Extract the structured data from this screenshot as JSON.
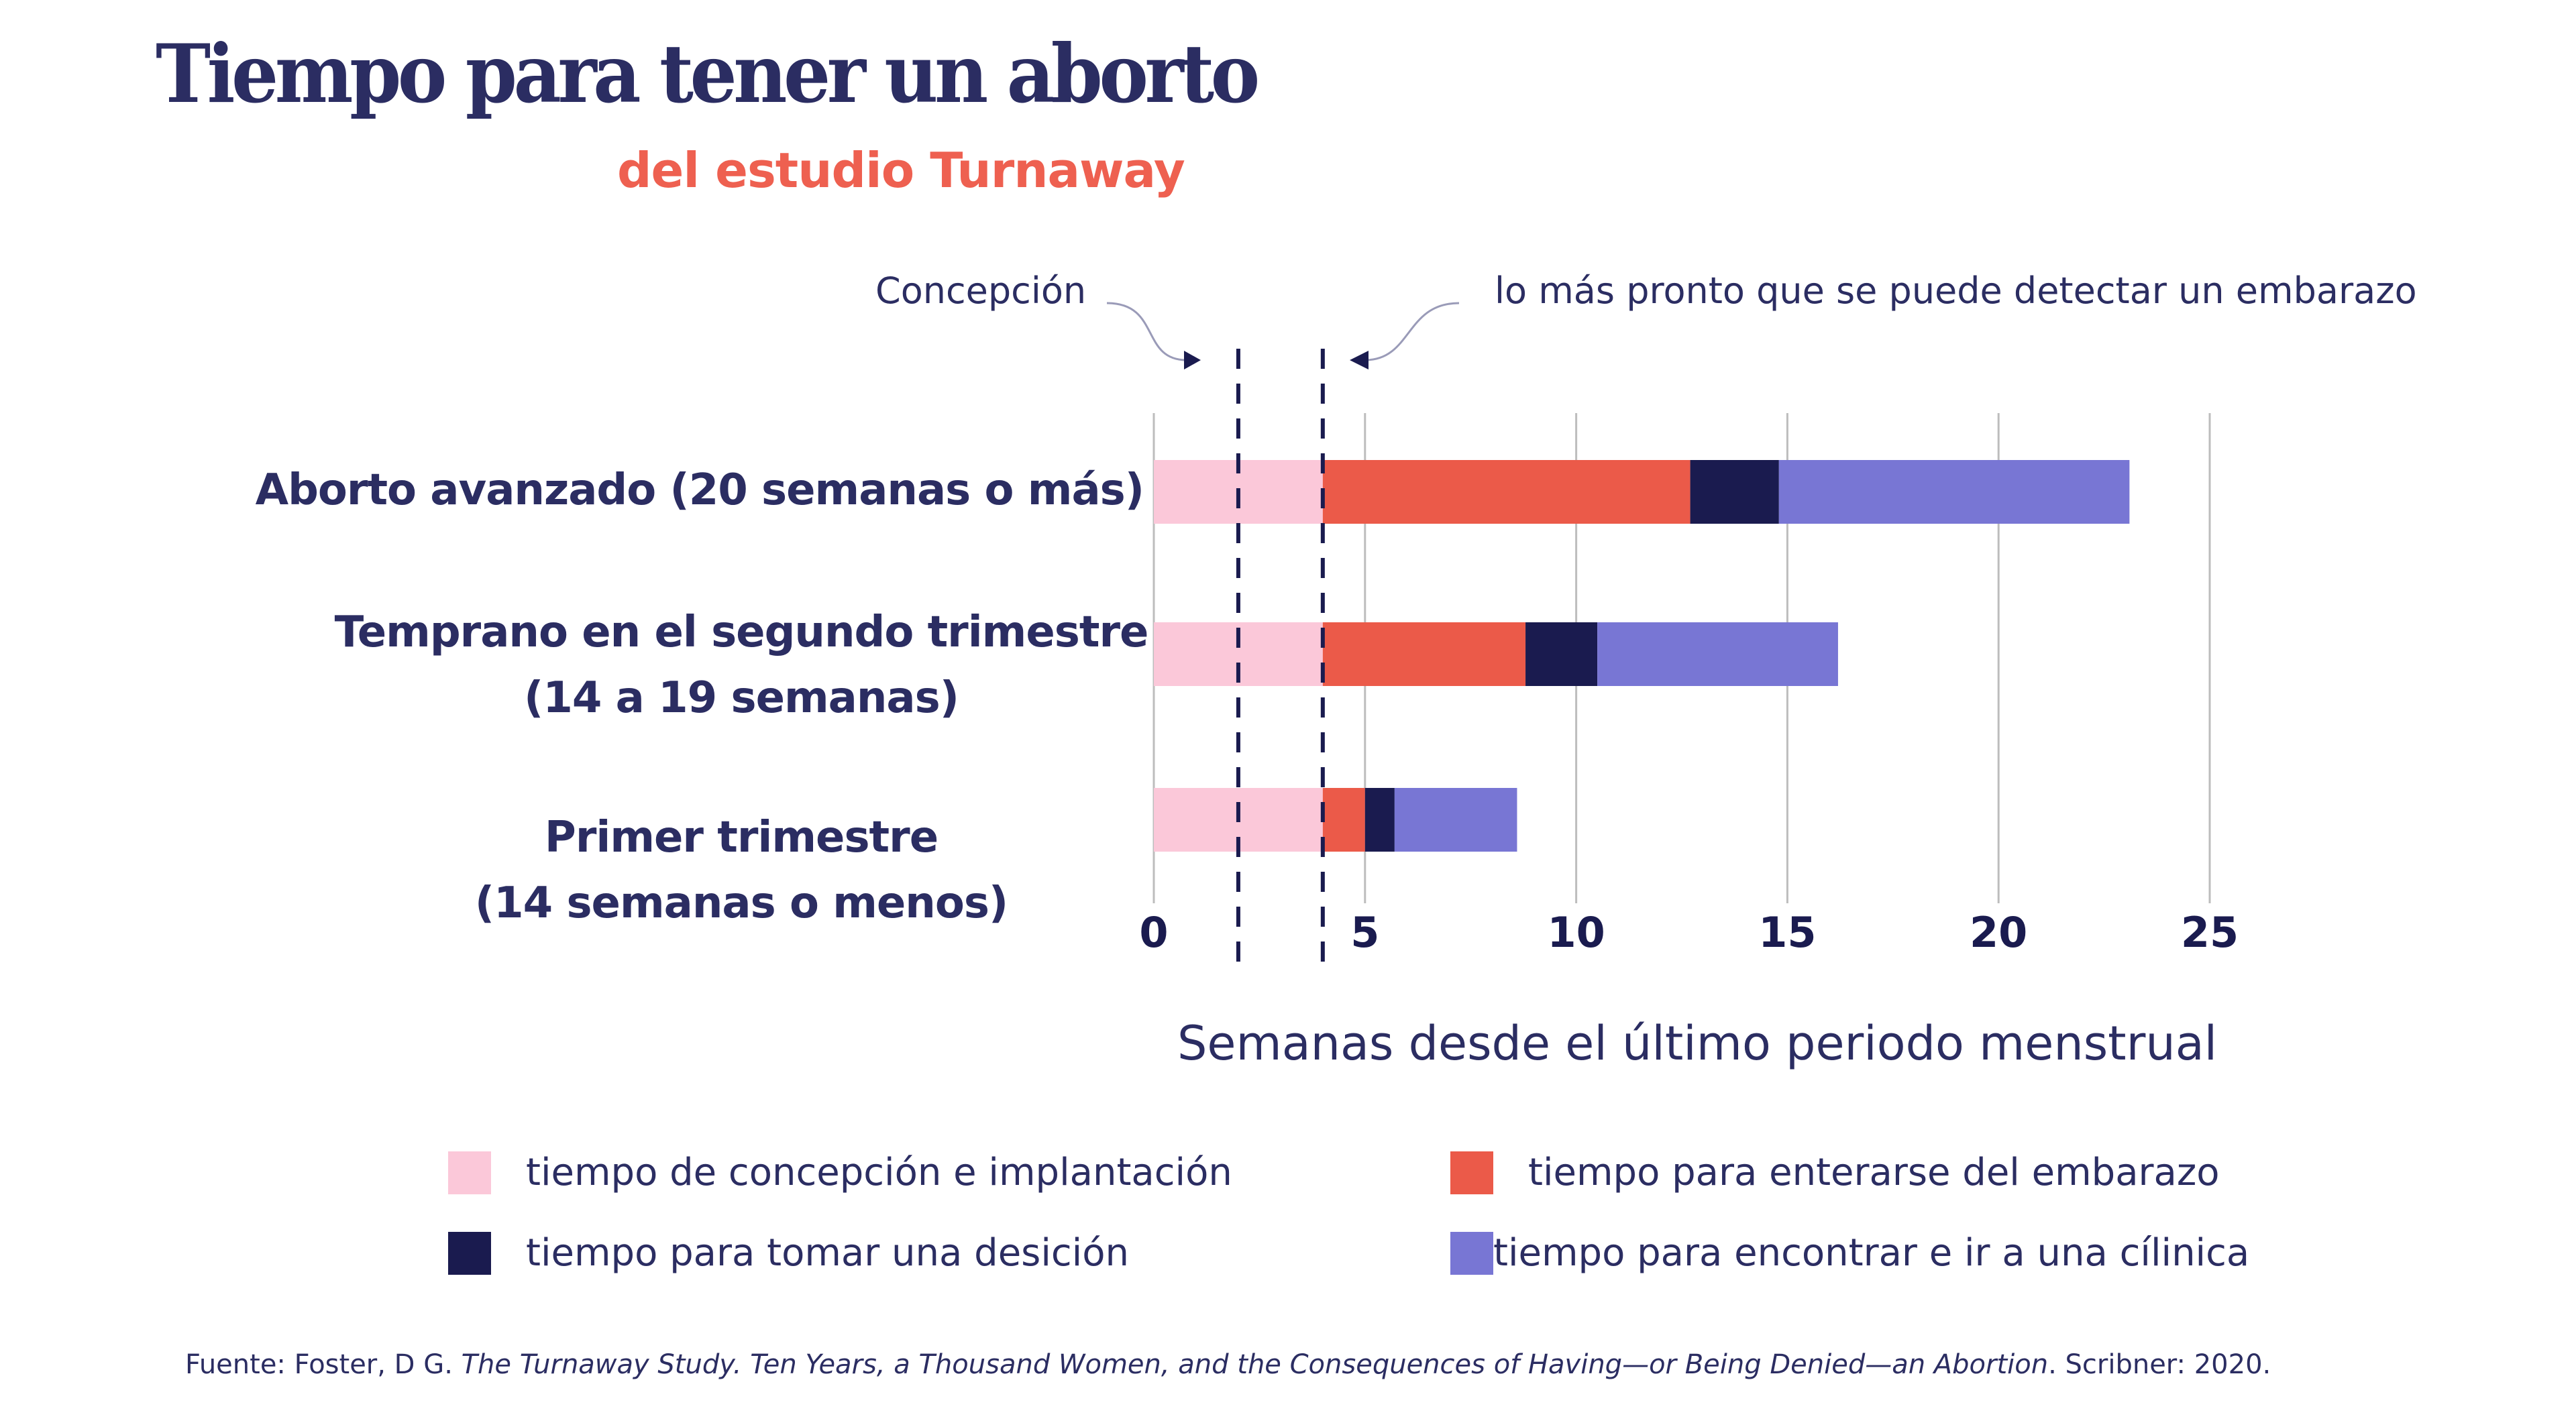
{
  "header": {
    "title": "Tiempo para tener un aborto",
    "subtitle": "del estudio Turnaway"
  },
  "annotations": {
    "conception": "Concepción",
    "detection": "lo más  pronto que se puede detectar un embarazo"
  },
  "colors": {
    "title": "#2B2D62",
    "subtitle": "#EE6050",
    "conception_implantation": "#FBC8D9",
    "learn_pregnancy": "#EB5A49",
    "decide": "#1A1B4F",
    "find_clinic": "#7876D4",
    "gridline": "#BDBDBD",
    "marker": "#1A1B4F"
  },
  "chart_data": {
    "type": "bar",
    "orientation": "horizontal",
    "stacked": true,
    "title": "Tiempo para tener un aborto",
    "subtitle": "del estudio Turnaway",
    "xlabel": "Semanas desde el último periodo menstrual",
    "ylabel": "",
    "xlim": [
      0,
      25
    ],
    "xticks": [
      0,
      5,
      10,
      15,
      20,
      25
    ],
    "xtick_labels": [
      "0",
      "5",
      "10",
      "15",
      "20",
      "25"
    ],
    "grid": true,
    "categories": [
      {
        "line1": "Aborto avanzado  (20 semanas o más)",
        "line2": ""
      },
      {
        "line1": "Temprano en el segundo trimestre",
        "line2": "(14 a 19 semanas)"
      },
      {
        "line1": "Primer trimestre",
        "line2": "(14 semanas o menos)"
      }
    ],
    "series": [
      {
        "name": "tiempo de concepción e implantación",
        "color_key": "conception_implantation",
        "values": [
          4.0,
          4.0,
          4.0
        ]
      },
      {
        "name": "tiempo para  enterarse del embarazo",
        "color_key": "learn_pregnancy",
        "values": [
          8.7,
          4.8,
          1.0
        ]
      },
      {
        "name": "tiempo para tomar una desición",
        "color_key": "decide",
        "values": [
          2.1,
          1.7,
          0.7
        ]
      },
      {
        "name": "tiempo para  encontrar e ir a una cílinica",
        "color_key": "find_clinic",
        "values": [
          8.3,
          5.7,
          2.9
        ]
      }
    ],
    "cumulative_end_weeks": [
      23.1,
      16.2,
      8.6
    ],
    "reference_lines": [
      {
        "label": "Concepción",
        "x": 2
      },
      {
        "label": "lo más  pronto que se puede detectar un embarazo",
        "x": 4
      }
    ],
    "legend_position": "bottom"
  },
  "legend": [
    {
      "label": "tiempo de concepción e implantación",
      "color_key": "conception_implantation"
    },
    {
      "label": "tiempo para  enterarse del embarazo",
      "color_key": "learn_pregnancy"
    },
    {
      "label": "tiempo para tomar una desición",
      "color_key": "decide"
    },
    {
      "label": "tiempo para  encontrar e ir a una cílinica",
      "color_key": "find_clinic"
    }
  ],
  "source": {
    "prefix": "Fuente:",
    "author": " Foster, D G. ",
    "title_italic": "The Turnaway Study. Ten Years, a Thousand Women, and the Consequences of Having—or Being Denied—an Abortion",
    "suffix": ". Scribner: 2020."
  }
}
